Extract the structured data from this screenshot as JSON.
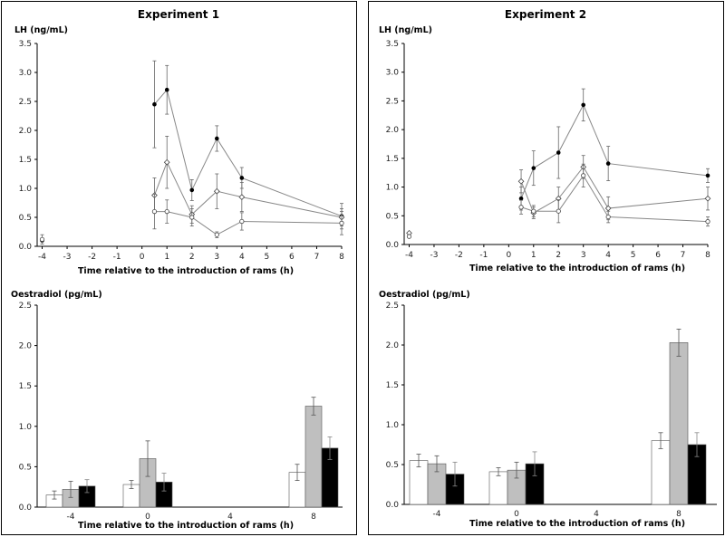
{
  "panels": [
    {
      "title": "Experiment 1",
      "lh": {
        "ylabel": "LH (ng/mL)",
        "xlabel": "Time relative to the introduction of rams (h)",
        "yticks": [
          "0.0",
          "0.5",
          "1.0",
          "1.5",
          "2.0",
          "2.5",
          "3.0",
          "3.5"
        ],
        "xticks": [
          "-4",
          "-3",
          "-2",
          "-1",
          "0",
          "1",
          "2",
          "3",
          "4",
          "5",
          "6",
          "7",
          "8"
        ]
      },
      "e2": {
        "ylabel": "Oestradiol (pg/mL)",
        "xlabel": "Time relative to the introduction of rams (h)",
        "yticks": [
          "0.0",
          "0.5",
          "1.0",
          "1.5",
          "2.0",
          "2.5"
        ],
        "xticks": [
          "-4",
          "0",
          "4",
          "8"
        ]
      }
    },
    {
      "title": "Experiment 2",
      "lh": {
        "ylabel": "LH (ng/mL)",
        "xlabel": "Time relative to the introduction of rams (h)",
        "yticks": [
          "0.0",
          "0.5",
          "1.0",
          "1.5",
          "2.0",
          "2.5",
          "3.0",
          "3.5"
        ],
        "xticks": [
          "-4",
          "-3",
          "-2",
          "-1",
          "0",
          "1",
          "2",
          "3",
          "4",
          "5",
          "6",
          "7",
          "8"
        ]
      },
      "e2": {
        "ylabel": "Oestradiol (pg/mL)",
        "xlabel": "Time relative to the introduction of rams (h)",
        "yticks": [
          "0.0",
          "0.5",
          "1.0",
          "1.5",
          "2.0",
          "2.5"
        ],
        "xticks": [
          "-4",
          "0",
          "4",
          "8"
        ]
      }
    }
  ],
  "chart_data": [
    {
      "type": "line",
      "title": "Experiment 1",
      "ylabel": "LH (ng/mL)",
      "xlabel": "Time relative to the introduction of rams (h)",
      "xlim": [
        -4.2,
        8
      ],
      "ylim": [
        0,
        3.5
      ],
      "grid": false,
      "series": [
        {
          "marker": "filled-circle",
          "x": [
            -4,
            0.5,
            1,
            2,
            3,
            4,
            8
          ],
          "y": [
            0.1,
            2.45,
            2.7,
            0.97,
            1.86,
            1.18,
            0.52
          ],
          "err": [
            0.0,
            0.75,
            0.42,
            0.18,
            0.22,
            0.18,
            0.22
          ]
        },
        {
          "marker": "open-diamond",
          "x": [
            0.5,
            1,
            2,
            3,
            4,
            8
          ],
          "y": [
            0.88,
            1.45,
            0.55,
            0.95,
            0.85,
            0.5
          ],
          "err": [
            0.3,
            0.45,
            0.15,
            0.3,
            0.25,
            0.15
          ]
        },
        {
          "marker": "open-circle",
          "x": [
            -4,
            0.5,
            1,
            2,
            3,
            4,
            8
          ],
          "y": [
            0.12,
            0.6,
            0.6,
            0.5,
            0.2,
            0.43,
            0.4
          ],
          "err": [
            0.08,
            0.3,
            0.2,
            0.15,
            0.05,
            0.15,
            0.2
          ]
        }
      ]
    },
    {
      "type": "bar",
      "title": "Experiment 1",
      "ylabel": "Oestradiol (pg/mL)",
      "xlabel": "Time relative to the introduction of rams (h)",
      "categories": [
        "-4",
        "0",
        "4",
        "8"
      ],
      "ylim": [
        0,
        2.5
      ],
      "series": [
        {
          "color": "#ffffff",
          "values": [
            0.15,
            0.28,
            null,
            0.43
          ],
          "err": [
            0.05,
            0.05,
            null,
            0.1
          ]
        },
        {
          "color": "#bfbfbf",
          "values": [
            0.22,
            0.6,
            null,
            1.25
          ],
          "err": [
            0.1,
            0.22,
            null,
            0.11
          ]
        },
        {
          "color": "#000000",
          "values": [
            0.26,
            0.31,
            null,
            0.73
          ],
          "err": [
            0.08,
            0.11,
            null,
            0.14
          ]
        }
      ]
    },
    {
      "type": "line",
      "title": "Experiment 2",
      "ylabel": "LH (ng/mL)",
      "xlabel": "Time relative to the introduction of rams (h)",
      "xlim": [
        -4.2,
        8
      ],
      "ylim": [
        0,
        3.5
      ],
      "grid": false,
      "series": [
        {
          "marker": "filled-circle",
          "x": [
            0.5,
            1,
            2,
            3,
            4,
            8
          ],
          "y": [
            0.8,
            1.33,
            1.6,
            2.43,
            1.41,
            1.2
          ],
          "err": [
            0.2,
            0.3,
            0.45,
            0.28,
            0.3,
            0.12
          ]
        },
        {
          "marker": "open-diamond",
          "x": [
            -4,
            0.5,
            1,
            2,
            3,
            4,
            8
          ],
          "y": [
            0.2,
            1.1,
            0.55,
            0.8,
            1.35,
            0.63,
            0.8
          ],
          "err": [
            0.0,
            0.2,
            0.1,
            0.2,
            0.2,
            0.2,
            0.2
          ]
        },
        {
          "marker": "open-circle",
          "x": [
            -4,
            0.5,
            1,
            2,
            3,
            4,
            8
          ],
          "y": [
            0.14,
            0.65,
            0.58,
            0.58,
            1.2,
            0.48,
            0.4
          ],
          "err": [
            0.0,
            0.12,
            0.1,
            0.2,
            0.2,
            0.1,
            0.08
          ]
        }
      ]
    },
    {
      "type": "bar",
      "title": "Experiment 2",
      "ylabel": "Oestradiol (pg/mL)",
      "xlabel": "Time relative to the introduction of rams (h)",
      "categories": [
        "-4",
        "0",
        "4",
        "8"
      ],
      "ylim": [
        0,
        2.5
      ],
      "series": [
        {
          "color": "#ffffff",
          "values": [
            0.55,
            0.41,
            null,
            0.8
          ],
          "err": [
            0.08,
            0.05,
            null,
            0.1
          ]
        },
        {
          "color": "#bfbfbf",
          "values": [
            0.51,
            0.43,
            null,
            2.03
          ],
          "err": [
            0.1,
            0.1,
            null,
            0.17
          ]
        },
        {
          "color": "#000000",
          "values": [
            0.38,
            0.51,
            null,
            0.75
          ],
          "err": [
            0.15,
            0.15,
            null,
            0.15
          ]
        }
      ]
    }
  ]
}
